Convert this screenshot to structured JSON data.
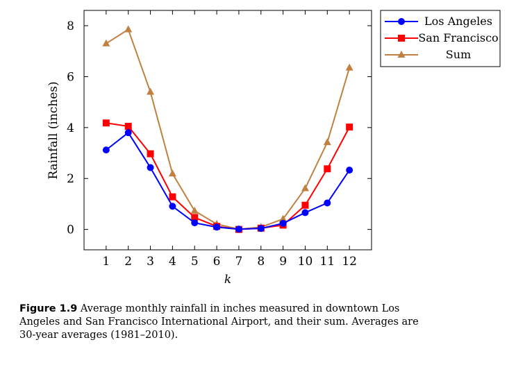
{
  "chart_data": {
    "type": "line",
    "xlabel": "k",
    "ylabel": "Rainfall (inches)",
    "x": [
      1,
      2,
      3,
      4,
      5,
      6,
      7,
      8,
      9,
      10,
      11,
      12
    ],
    "xlim": [
      0,
      13
    ],
    "ylim": [
      -0.8,
      8.6
    ],
    "yticks": [
      0,
      2,
      4,
      6,
      8
    ],
    "grid": false,
    "legend_position": "top-right",
    "series": [
      {
        "name": "Los Angeles",
        "color": "#0000ff",
        "marker": "circle",
        "values": [
          3.12,
          3.8,
          2.43,
          0.91,
          0.26,
          0.09,
          0.01,
          0.04,
          0.24,
          0.66,
          1.04,
          2.33
        ]
      },
      {
        "name": "San Francisco",
        "color": "#ff0000",
        "marker": "square",
        "values": [
          4.18,
          4.05,
          2.97,
          1.28,
          0.47,
          0.12,
          0.0,
          0.05,
          0.17,
          0.95,
          2.38,
          4.02
        ]
      },
      {
        "name": "Sum",
        "color": "#bf8040",
        "marker": "triangle",
        "values": [
          7.3,
          7.85,
          5.4,
          2.19,
          0.73,
          0.21,
          0.01,
          0.09,
          0.41,
          1.61,
          3.42,
          6.35
        ]
      }
    ]
  },
  "caption": {
    "label": "Figure 1.9",
    "text": " Average monthly rainfall in inches measured in downtown Los Angeles and San Francisco International Airport, and their sum. Averages are 30-year averages (1981–2010)."
  }
}
